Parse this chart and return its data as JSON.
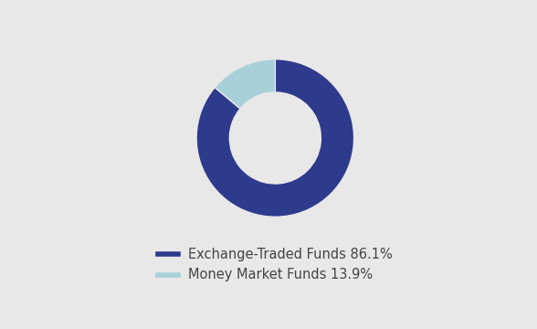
{
  "slices": [
    86.1,
    13.9
  ],
  "labels": [
    "Exchange-Traded Funds 86.1%",
    "Money Market Funds 13.9%"
  ],
  "colors": [
    "#2e3a8c",
    "#a8d0d8"
  ],
  "background_color": "#e8e8e8",
  "donut_width": 0.42,
  "start_angle": 90,
  "legend_fontsize": 10.5,
  "text_color": "#444444"
}
